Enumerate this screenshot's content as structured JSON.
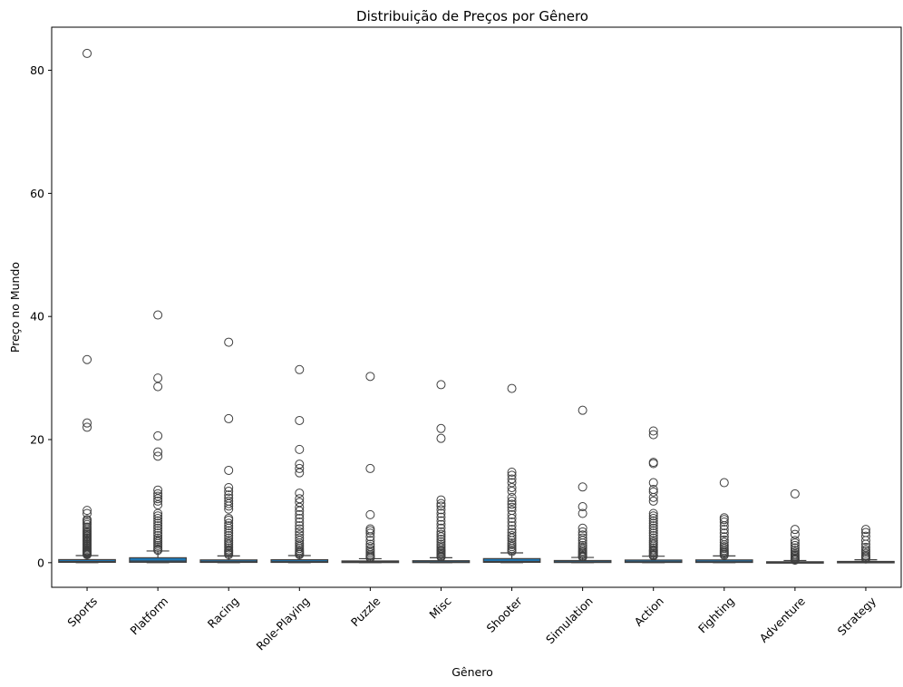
{
  "chart_data": {
    "type": "boxplot",
    "title": "Distribuição de Preços por Gênero",
    "xlabel": "Gênero",
    "ylabel": "Preço no Mundo",
    "ylim": [
      -4,
      87
    ],
    "yticks": [
      0,
      20,
      40,
      60,
      80
    ],
    "categories": [
      "Sports",
      "Platform",
      "Racing",
      "Role-Playing",
      "Puzzle",
      "Misc",
      "Shooter",
      "Simulation",
      "Action",
      "Fighting",
      "Adventure",
      "Strategy"
    ],
    "box_color": "#1f77b4",
    "grid": false,
    "legend": "none",
    "boxes": [
      {
        "q1": 0.06,
        "median": 0.19,
        "q3": 0.5,
        "whisker_low": 0.01,
        "whisker_high": 1.15,
        "outliers": [
          82.74,
          33.0,
          22.7,
          22.0,
          8.5,
          8.0,
          7.0,
          6.8,
          6.5,
          6.2,
          5.8,
          5.5,
          5.2,
          5.0,
          4.8,
          4.6,
          4.4,
          4.2,
          4.0,
          3.8,
          3.6,
          3.4,
          3.2,
          3.0,
          2.8,
          2.6,
          2.4,
          2.2,
          2.0,
          1.9,
          1.8,
          1.7,
          1.6,
          1.5,
          1.4,
          1.3
        ]
      },
      {
        "q1": 0.07,
        "median": 0.25,
        "q3": 0.8,
        "whisker_low": 0.01,
        "whisker_high": 1.9,
        "outliers": [
          40.24,
          30.0,
          28.6,
          20.6,
          18.0,
          17.3,
          11.8,
          11.2,
          10.8,
          10.4,
          10.0,
          9.4,
          8.0,
          7.6,
          7.2,
          6.8,
          6.4,
          6.0,
          5.6,
          5.2,
          4.8,
          4.4,
          4.0,
          3.7,
          3.4,
          3.1,
          2.8,
          2.5,
          2.2,
          2.0
        ]
      },
      {
        "q1": 0.05,
        "median": 0.16,
        "q3": 0.45,
        "whisker_low": 0.01,
        "whisker_high": 1.1,
        "outliers": [
          35.82,
          23.4,
          15.0,
          12.2,
          11.6,
          11.0,
          10.5,
          10.0,
          9.6,
          9.2,
          8.7,
          7.2,
          6.9,
          6.4,
          6.0,
          5.6,
          5.2,
          4.8,
          4.4,
          4.0,
          3.6,
          3.3,
          3.0,
          2.7,
          2.4,
          2.1,
          1.9,
          1.7,
          1.5,
          1.3
        ]
      },
      {
        "q1": 0.05,
        "median": 0.16,
        "q3": 0.48,
        "whisker_low": 0.01,
        "whisker_high": 1.15,
        "outliers": [
          31.37,
          23.1,
          18.4,
          16.0,
          15.3,
          14.6,
          11.3,
          10.4,
          9.8,
          9.0,
          8.4,
          7.8,
          7.2,
          6.6,
          6.0,
          5.5,
          5.0,
          4.5,
          4.0,
          3.6,
          3.2,
          2.9,
          2.6,
          2.3,
          2.0,
          1.8,
          1.6,
          1.4,
          1.3
        ]
      },
      {
        "q1": 0.02,
        "median": 0.1,
        "q3": 0.28,
        "whisker_low": 0.0,
        "whisker_high": 0.65,
        "outliers": [
          30.26,
          15.3,
          7.8,
          5.5,
          5.2,
          4.8,
          4.2,
          3.6,
          3.0,
          2.6,
          2.2,
          1.9,
          1.6,
          1.3,
          1.1,
          0.9,
          0.8
        ]
      },
      {
        "q1": 0.02,
        "median": 0.1,
        "q3": 0.32,
        "whisker_low": 0.0,
        "whisker_high": 0.8,
        "outliers": [
          28.92,
          21.8,
          20.2,
          10.2,
          9.6,
          9.2,
          8.6,
          8.0,
          7.4,
          6.8,
          6.2,
          5.6,
          5.0,
          4.6,
          4.2,
          3.8,
          3.4,
          3.0,
          2.7,
          2.4,
          2.1,
          1.9,
          1.7,
          1.5,
          1.3,
          1.1,
          1.0,
          0.9
        ]
      },
      {
        "q1": 0.06,
        "median": 0.2,
        "q3": 0.66,
        "whisker_low": 0.01,
        "whisker_high": 1.6,
        "outliers": [
          28.31,
          14.7,
          14.2,
          13.6,
          13.0,
          12.2,
          11.6,
          10.6,
          10.0,
          9.5,
          9.0,
          8.5,
          7.8,
          7.2,
          6.6,
          6.0,
          5.4,
          4.9,
          4.4,
          4.0,
          3.6,
          3.2,
          2.9,
          2.6,
          2.3,
          2.0,
          1.8
        ]
      },
      {
        "q1": 0.03,
        "median": 0.12,
        "q3": 0.35,
        "whisker_low": 0.0,
        "whisker_high": 0.85,
        "outliers": [
          24.76,
          12.3,
          9.1,
          8.0,
          5.6,
          5.0,
          4.5,
          4.0,
          3.6,
          3.2,
          2.8,
          2.5,
          2.2,
          1.9,
          1.7,
          1.5,
          1.3,
          1.1,
          1.0,
          0.9
        ]
      },
      {
        "q1": 0.04,
        "median": 0.15,
        "q3": 0.43,
        "whisker_low": 0.0,
        "whisker_high": 1.05,
        "outliers": [
          21.4,
          20.8,
          16.3,
          16.1,
          13.0,
          11.9,
          11.5,
          10.6,
          10.0,
          8.0,
          7.6,
          7.2,
          6.8,
          6.4,
          6.0,
          5.6,
          5.2,
          4.8,
          4.4,
          4.0,
          3.6,
          3.3,
          3.0,
          2.7,
          2.4,
          2.1,
          1.9,
          1.7,
          1.5,
          1.3,
          1.2,
          1.1
        ]
      },
      {
        "q1": 0.04,
        "median": 0.15,
        "q3": 0.45,
        "whisker_low": 0.0,
        "whisker_high": 1.1,
        "outliers": [
          13.0,
          7.3,
          7.0,
          6.6,
          6.0,
          5.4,
          4.8,
          4.2,
          3.7,
          3.3,
          2.9,
          2.6,
          2.3,
          2.0,
          1.8,
          1.6,
          1.4,
          1.2
        ]
      },
      {
        "q1": 0.01,
        "median": 0.05,
        "q3": 0.15,
        "whisker_low": 0.0,
        "whisker_high": 0.35,
        "outliers": [
          11.18,
          5.4,
          4.6,
          3.6,
          3.2,
          2.8,
          2.4,
          2.0,
          1.7,
          1.4,
          1.2,
          1.0,
          0.8,
          0.6,
          0.5,
          0.4
        ]
      },
      {
        "q1": 0.02,
        "median": 0.06,
        "q3": 0.2,
        "whisker_low": 0.0,
        "whisker_high": 0.47,
        "outliers": [
          5.4,
          4.9,
          4.3,
          3.6,
          3.0,
          2.5,
          2.1,
          1.8,
          1.5,
          1.2,
          1.0,
          0.8,
          0.6
        ]
      }
    ]
  }
}
